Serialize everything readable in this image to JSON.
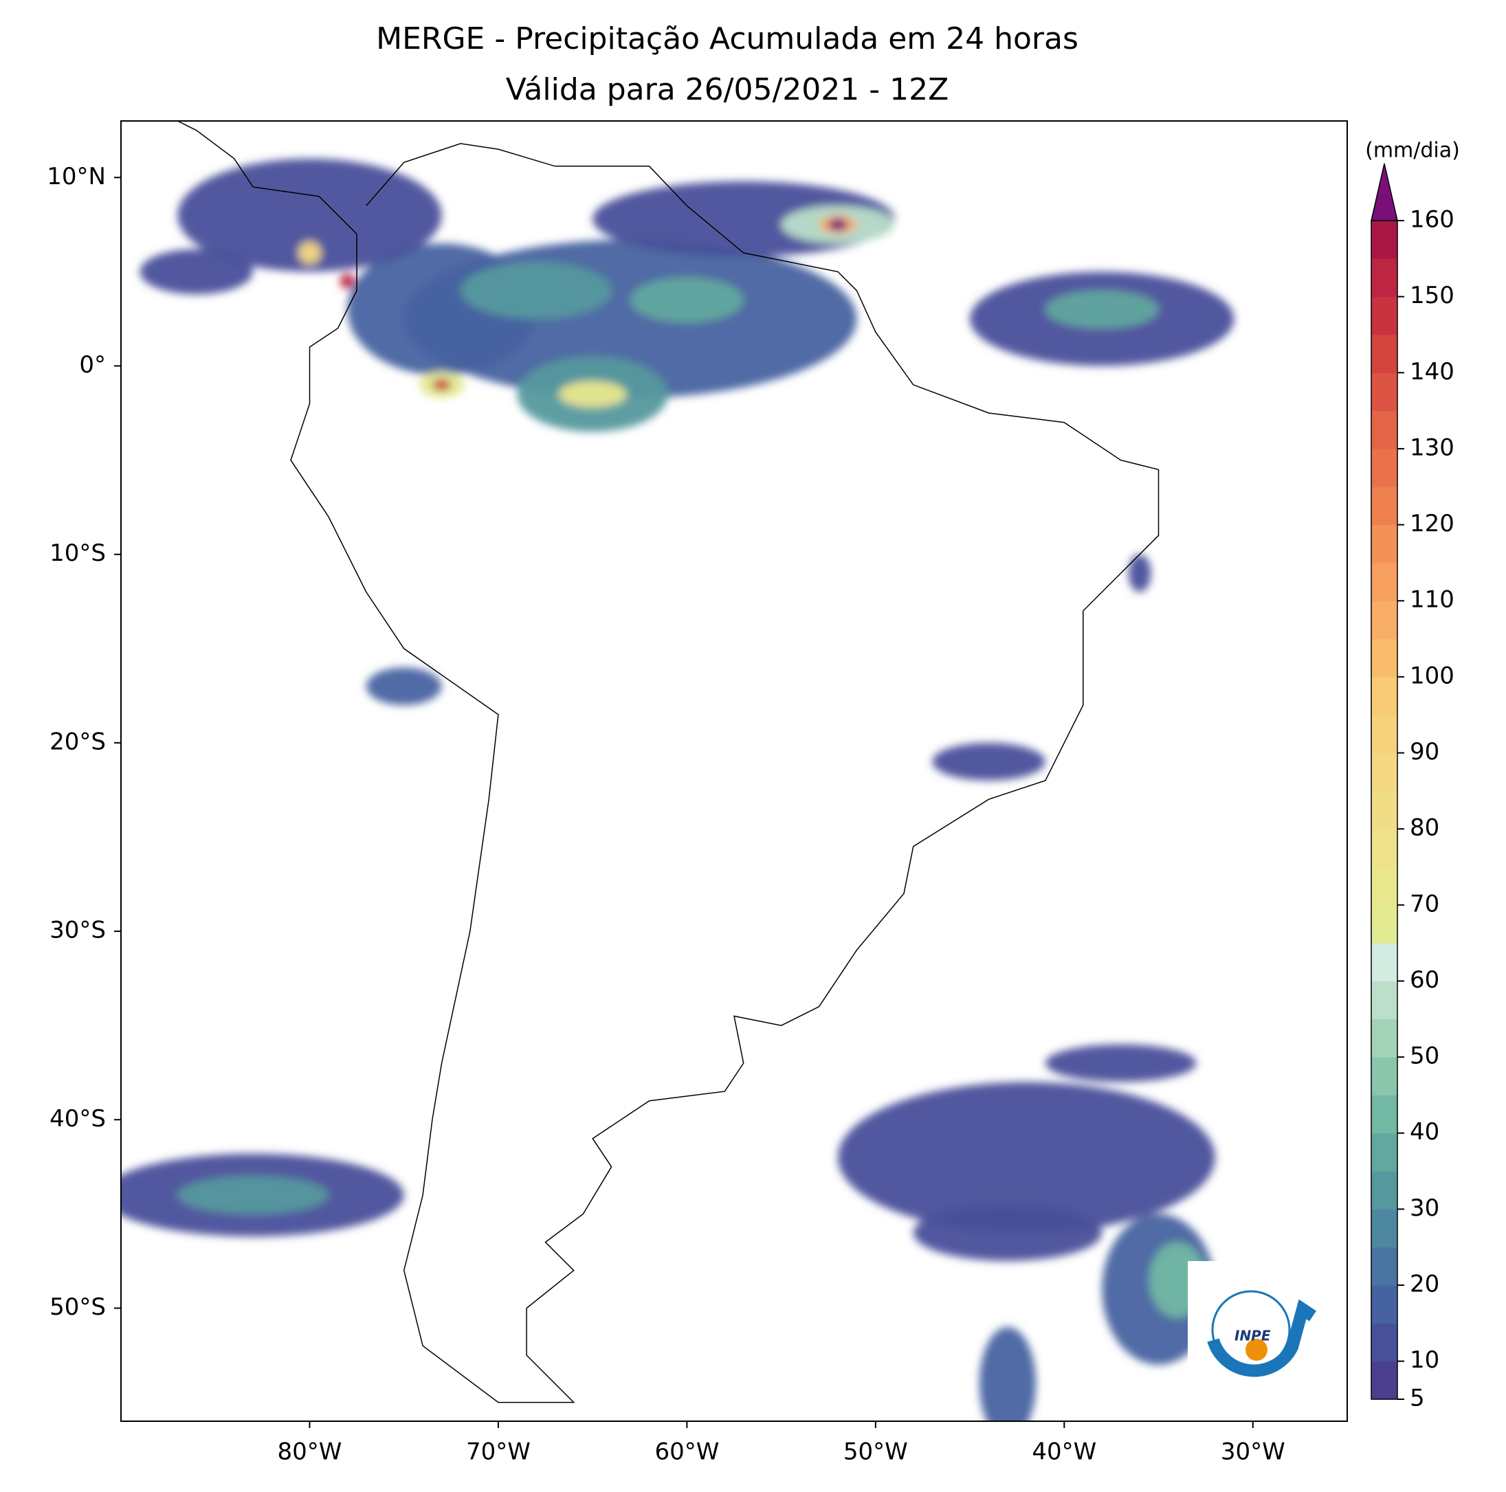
{
  "title": [
    "MERGE - Precipitação Acumulada em 24 horas",
    "Válida para 26/05/2021 - 12Z"
  ],
  "map": {
    "xlim": [
      -90,
      -25
    ],
    "ylim": [
      -56,
      13
    ],
    "xticks": [
      {
        "value": -80,
        "label": "80°W"
      },
      {
        "value": -70,
        "label": "70°W"
      },
      {
        "value": -60,
        "label": "60°W"
      },
      {
        "value": -50,
        "label": "50°W"
      },
      {
        "value": -40,
        "label": "40°W"
      },
      {
        "value": -30,
        "label": "30°W"
      }
    ],
    "yticks": [
      {
        "value": 10,
        "label": "10°N"
      },
      {
        "value": 0,
        "label": "0°"
      },
      {
        "value": -10,
        "label": "10°S"
      },
      {
        "value": -20,
        "label": "20°S"
      },
      {
        "value": -30,
        "label": "30°S"
      },
      {
        "value": -40,
        "label": "40°S"
      },
      {
        "value": -50,
        "label": "50°S"
      }
    ]
  },
  "colorbar": {
    "label": "(mm/dia)",
    "lim": [
      5,
      160
    ],
    "ticks": [
      5,
      10,
      20,
      30,
      40,
      50,
      60,
      70,
      80,
      90,
      100,
      110,
      120,
      130,
      140,
      150,
      160
    ],
    "colors": [
      "#4b3f8e",
      "#48509a",
      "#4762a0",
      "#4a75a1",
      "#4d88a0",
      "#55999e",
      "#62a89f",
      "#73b8a3",
      "#8ac6ab",
      "#a2d2b8",
      "#bcdfcb",
      "#d4ebe2",
      "#e2ea92",
      "#e8e78d",
      "#ede28a",
      "#f1dd86",
      "#f4d882",
      "#f7d27d",
      "#f9cb77",
      "#f9bc6d",
      "#f8ae66",
      "#f69f5e",
      "#f39158",
      "#ef8150",
      "#ea724b",
      "#e46447",
      "#dc5443",
      "#d4453f",
      "#c8333f",
      "#bc2642",
      "#a91845"
    ],
    "extend_color": "#7b0f78"
  },
  "logo": "INPE"
}
